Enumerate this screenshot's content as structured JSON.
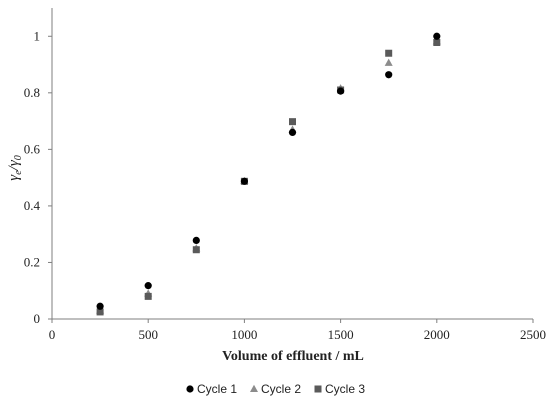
{
  "chart_data": {
    "type": "scatter",
    "xlabel": "Volume of effluent / mL",
    "ylabel": {
      "main": "γ",
      "sub1": "e",
      "slash": "/γ",
      "sub2": "0"
    },
    "xlim": [
      0,
      2500
    ],
    "ylim": [
      0,
      1.1
    ],
    "x_ticks": [
      0,
      500,
      1000,
      1500,
      2000,
      2500
    ],
    "y_ticks": [
      0,
      0.2,
      0.4,
      0.6,
      0.8,
      1
    ],
    "x_tick_labels": [
      "0",
      "500",
      "1000",
      "1500",
      "2000",
      "2500"
    ],
    "y_tick_labels": [
      "0",
      "0.2",
      "0.4",
      "0.6",
      "0.8",
      "1"
    ],
    "grid": false,
    "legend_position": "bottom",
    "series": [
      {
        "name": "Cycle 1",
        "marker": "circle",
        "color": "#000000",
        "x": [
          250,
          500,
          750,
          1000,
          1250,
          1500,
          1750,
          2000
        ],
        "y": [
          0.045,
          0.118,
          0.278,
          0.487,
          0.66,
          0.806,
          0.864,
          1.0
        ]
      },
      {
        "name": "Cycle 2",
        "marker": "triangle",
        "color": "#8c8c8c",
        "x": [
          250,
          500,
          750,
          1000,
          1250,
          1500,
          1750,
          2000
        ],
        "y": [
          0.03,
          0.09,
          0.25,
          0.488,
          0.67,
          0.816,
          0.906,
          0.982
        ]
      },
      {
        "name": "Cycle 3",
        "marker": "square",
        "color": "#5a5a5a",
        "x": [
          250,
          500,
          750,
          1000,
          1250,
          1500,
          1750,
          2000
        ],
        "y": [
          0.025,
          0.08,
          0.245,
          0.487,
          0.698,
          0.81,
          0.94,
          0.978
        ]
      }
    ]
  }
}
